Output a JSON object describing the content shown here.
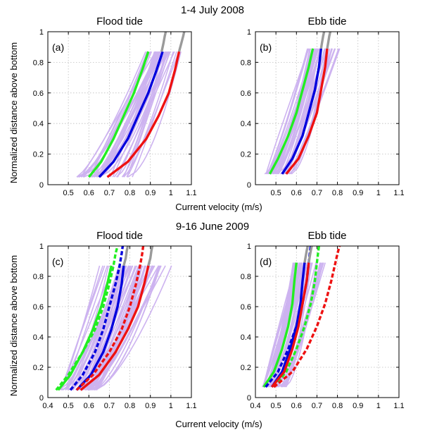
{
  "figure": {
    "top_title": "1-4 July 2008",
    "bottom_title": "9-16 June 2009",
    "xlabel": "Current velocity (m/s)",
    "ylabel": "Normalized distance above bottom"
  },
  "colors": {
    "background_profiles": "#cdb3f0",
    "gray": "#9a9a9a",
    "green": "#22ee22",
    "blue": "#0000dd",
    "red": "#ee1111"
  },
  "chart_data": [
    {
      "type": "line",
      "label": "(a)",
      "title": "Flood tide",
      "xlim": [
        0.4,
        1.1
      ],
      "ylim": [
        0,
        1
      ],
      "xticks": [
        "0.5",
        "0.6",
        "0.7",
        "0.8",
        "0.9",
        "1",
        "1.1"
      ],
      "yticks": [
        "0",
        "0.2",
        "0.4",
        "0.6",
        "0.8",
        "1"
      ],
      "grid": true,
      "profiles": {
        "count": 40,
        "y_range": [
          0.05,
          0.87
        ],
        "x_bottom_range": [
          0.54,
          0.82
        ],
        "x_top_range": [
          0.86,
          1.07
        ]
      },
      "series": [
        {
          "color": "green",
          "style": "solid",
          "x": [
            0.6,
            0.66,
            0.72,
            0.77,
            0.82,
            0.86,
            0.89
          ],
          "y": [
            0.05,
            0.15,
            0.3,
            0.45,
            0.6,
            0.75,
            0.87
          ]
        },
        {
          "color": "blue",
          "style": "solid",
          "x": [
            0.65,
            0.72,
            0.79,
            0.84,
            0.89,
            0.93,
            0.96
          ],
          "y": [
            0.05,
            0.15,
            0.3,
            0.45,
            0.6,
            0.75,
            0.87
          ]
        },
        {
          "color": "red",
          "style": "solid",
          "x": [
            0.69,
            0.79,
            0.88,
            0.94,
            0.99,
            1.02,
            1.04
          ],
          "y": [
            0.05,
            0.15,
            0.3,
            0.45,
            0.6,
            0.75,
            0.87
          ]
        },
        {
          "color": "gray",
          "style": "solid",
          "x": [
            0.955,
            0.963,
            0.97,
            0.975
          ],
          "y": [
            0.87,
            0.92,
            0.97,
            1.0
          ]
        },
        {
          "color": "gray",
          "style": "solid",
          "x": [
            1.04,
            1.05,
            1.06,
            1.065
          ],
          "y": [
            0.87,
            0.92,
            0.97,
            1.0
          ]
        }
      ]
    },
    {
      "type": "line",
      "label": "(b)",
      "title": "Ebb tide",
      "xlim": [
        0.4,
        1.1
      ],
      "ylim": [
        0,
        1
      ],
      "xticks": [
        "0.5",
        "0.6",
        "0.7",
        "0.8",
        "0.9",
        "1",
        "1.1"
      ],
      "yticks": [
        "0",
        "0.2",
        "0.4",
        "0.6",
        "0.8",
        "1"
      ],
      "grid": true,
      "profiles": {
        "count": 40,
        "y_range": [
          0.07,
          0.89
        ],
        "x_bottom_range": [
          0.44,
          0.58
        ],
        "x_top_range": [
          0.63,
          0.83
        ]
      },
      "series": [
        {
          "color": "green",
          "style": "solid",
          "x": [
            0.47,
            0.51,
            0.56,
            0.6,
            0.63,
            0.66,
            0.68
          ],
          "y": [
            0.07,
            0.17,
            0.32,
            0.47,
            0.62,
            0.77,
            0.89
          ]
        },
        {
          "color": "blue",
          "style": "solid",
          "x": [
            0.53,
            0.58,
            0.63,
            0.66,
            0.69,
            0.71,
            0.72
          ],
          "y": [
            0.07,
            0.17,
            0.32,
            0.47,
            0.62,
            0.77,
            0.89
          ]
        },
        {
          "color": "red",
          "style": "solid",
          "x": [
            0.55,
            0.61,
            0.66,
            0.7,
            0.72,
            0.74,
            0.75
          ],
          "y": [
            0.07,
            0.17,
            0.32,
            0.47,
            0.62,
            0.77,
            0.89
          ]
        },
        {
          "color": "gray",
          "style": "solid",
          "x": [
            0.72,
            0.725,
            0.73,
            0.735
          ],
          "y": [
            0.89,
            0.93,
            0.97,
            1.0
          ]
        },
        {
          "color": "gray",
          "style": "solid",
          "x": [
            0.75,
            0.755,
            0.76,
            0.765
          ],
          "y": [
            0.89,
            0.93,
            0.97,
            1.0
          ]
        }
      ]
    },
    {
      "type": "line",
      "label": "(c)",
      "title": "Flood tide",
      "xlim": [
        0.4,
        1.1
      ],
      "ylim": [
        0,
        1
      ],
      "xticks": [
        "0.4",
        "0.5",
        "0.6",
        "0.7",
        "0.8",
        "0.9",
        "1",
        "1.1"
      ],
      "yticks": [
        "0",
        "0.2",
        "0.4",
        "0.6",
        "0.8",
        "1"
      ],
      "grid": true,
      "profiles": {
        "count": 60,
        "y_range": [
          0.05,
          0.87
        ],
        "x_bottom_range": [
          0.45,
          0.64
        ],
        "x_top_range": [
          0.62,
          1.02
        ]
      },
      "series": [
        {
          "color": "green",
          "style": "solid",
          "x": [
            0.45,
            0.51,
            0.57,
            0.62,
            0.66,
            0.69,
            0.71
          ],
          "y": [
            0.05,
            0.15,
            0.3,
            0.45,
            0.6,
            0.75,
            0.87
          ]
        },
        {
          "color": "green",
          "style": "dashed",
          "x": [
            0.44,
            0.5,
            0.57,
            0.63,
            0.67,
            0.7,
            0.72,
            0.73,
            0.74
          ],
          "y": [
            0.05,
            0.15,
            0.3,
            0.45,
            0.6,
            0.75,
            0.87,
            0.95,
            1.0
          ]
        },
        {
          "color": "blue",
          "style": "solid",
          "x": [
            0.54,
            0.61,
            0.67,
            0.71,
            0.74,
            0.76,
            0.77
          ],
          "y": [
            0.05,
            0.15,
            0.3,
            0.45,
            0.6,
            0.75,
            0.87
          ]
        },
        {
          "color": "blue",
          "style": "dashed",
          "x": [
            0.51,
            0.57,
            0.63,
            0.67,
            0.7,
            0.73,
            0.75,
            0.76,
            0.765
          ],
          "y": [
            0.05,
            0.15,
            0.3,
            0.45,
            0.6,
            0.75,
            0.87,
            0.95,
            1.0
          ]
        },
        {
          "color": "red",
          "style": "solid",
          "x": [
            0.56,
            0.65,
            0.73,
            0.79,
            0.84,
            0.87,
            0.89
          ],
          "y": [
            0.05,
            0.15,
            0.3,
            0.45,
            0.6,
            0.75,
            0.87
          ]
        },
        {
          "color": "red",
          "style": "dashed",
          "x": [
            0.54,
            0.62,
            0.7,
            0.76,
            0.8,
            0.83,
            0.85,
            0.86,
            0.865
          ],
          "y": [
            0.05,
            0.15,
            0.3,
            0.45,
            0.6,
            0.75,
            0.87,
            0.95,
            1.0
          ]
        },
        {
          "color": "gray",
          "style": "solid",
          "x": [
            0.77,
            0.78,
            0.785,
            0.79
          ],
          "y": [
            0.87,
            0.92,
            0.97,
            1.0
          ]
        },
        {
          "color": "gray",
          "style": "solid",
          "x": [
            0.89,
            0.9,
            0.905,
            0.91
          ],
          "y": [
            0.87,
            0.92,
            0.97,
            1.0
          ]
        }
      ]
    },
    {
      "type": "line",
      "label": "(d)",
      "title": "Ebb tide",
      "xlim": [
        0.4,
        1.1
      ],
      "ylim": [
        0,
        1
      ],
      "xticks": [
        "0.4",
        "0.5",
        "0.6",
        "0.7",
        "0.8",
        "0.9",
        "1",
        "1.1"
      ],
      "yticks": [
        "0",
        "0.2",
        "0.4",
        "0.6",
        "0.8",
        "1"
      ],
      "grid": true,
      "profiles": {
        "count": 50,
        "y_range": [
          0.07,
          0.89
        ],
        "x_bottom_range": [
          0.43,
          0.55
        ],
        "x_top_range": [
          0.54,
          0.77
        ]
      },
      "series": [
        {
          "color": "green",
          "style": "solid",
          "x": [
            0.44,
            0.49,
            0.53,
            0.56,
            0.58,
            0.59,
            0.6
          ],
          "y": [
            0.07,
            0.17,
            0.32,
            0.47,
            0.62,
            0.77,
            0.89
          ]
        },
        {
          "color": "green",
          "style": "dashed",
          "x": [
            0.49,
            0.55,
            0.6,
            0.64,
            0.67,
            0.69,
            0.7,
            0.705,
            0.71
          ],
          "y": [
            0.07,
            0.17,
            0.32,
            0.47,
            0.62,
            0.77,
            0.89,
            0.95,
            1.0
          ]
        },
        {
          "color": "blue",
          "style": "solid",
          "x": [
            0.48,
            0.53,
            0.57,
            0.6,
            0.62,
            0.63,
            0.64
          ],
          "y": [
            0.07,
            0.17,
            0.32,
            0.47,
            0.62,
            0.77,
            0.89
          ]
        },
        {
          "color": "blue",
          "style": "dashed",
          "x": [
            0.45,
            0.51,
            0.56,
            0.6,
            0.63,
            0.65,
            0.66,
            0.665,
            0.67
          ],
          "y": [
            0.07,
            0.17,
            0.32,
            0.47,
            0.62,
            0.77,
            0.89,
            0.95,
            1.0
          ]
        },
        {
          "color": "red",
          "style": "solid",
          "x": [
            0.48,
            0.54,
            0.58,
            0.61,
            0.63,
            0.65,
            0.66
          ],
          "y": [
            0.07,
            0.17,
            0.32,
            0.47,
            0.62,
            0.77,
            0.89
          ]
        },
        {
          "color": "red",
          "style": "dashed",
          "x": [
            0.49,
            0.58,
            0.65,
            0.7,
            0.74,
            0.77,
            0.79,
            0.8,
            0.81
          ],
          "y": [
            0.07,
            0.17,
            0.32,
            0.47,
            0.62,
            0.77,
            0.89,
            0.95,
            1.0
          ]
        },
        {
          "color": "gray",
          "style": "solid",
          "x": [
            0.64,
            0.645,
            0.65,
            0.655
          ],
          "y": [
            0.89,
            0.93,
            0.97,
            1.0
          ]
        },
        {
          "color": "gray",
          "style": "solid",
          "x": [
            0.66,
            0.665,
            0.67,
            0.675
          ],
          "y": [
            0.89,
            0.93,
            0.97,
            1.0
          ]
        }
      ]
    }
  ]
}
